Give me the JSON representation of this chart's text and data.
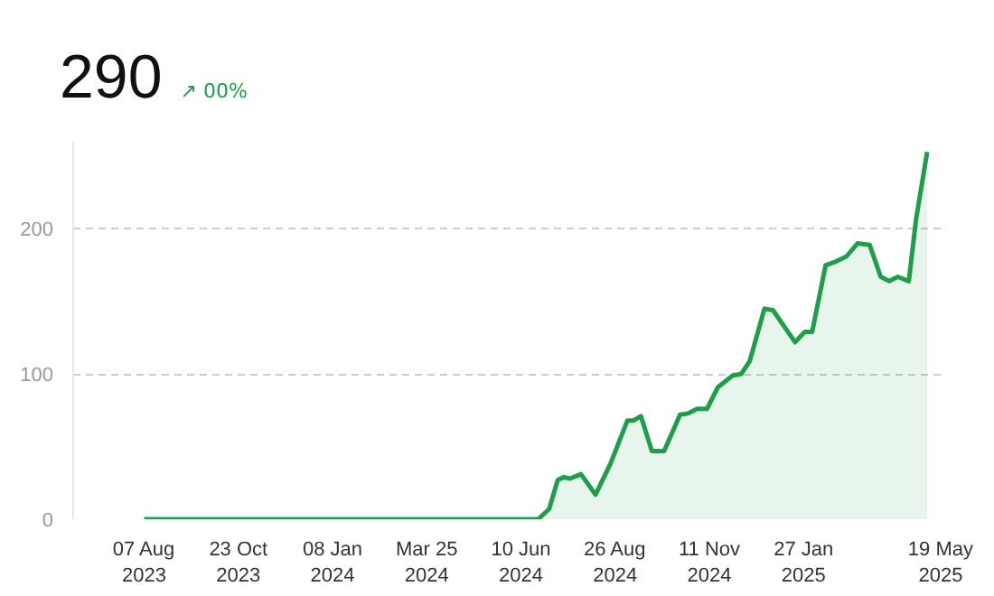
{
  "chart_data": {
    "type": "area",
    "annotations": [
      "290",
      "↗ 00%"
    ],
    "x": [
      "2023-08-07",
      "2024-05-31",
      "2024-06-24",
      "2024-07-03",
      "2024-07-10",
      "2024-07-15",
      "2024-07-20",
      "2024-07-29",
      "2024-08-10",
      "2024-08-22",
      "2024-09-05",
      "2024-09-10",
      "2024-09-16",
      "2024-09-25",
      "2024-10-05",
      "2024-10-18",
      "2024-10-25",
      "2024-11-01",
      "2024-11-09",
      "2024-11-18",
      "2024-11-30",
      "2024-12-07",
      "2024-12-14",
      "2024-12-26",
      "2025-01-02",
      "2025-01-20",
      "2025-01-28",
      "2025-02-03",
      "2025-02-14",
      "2025-02-21",
      "2025-03-03",
      "2025-03-12",
      "2025-03-22",
      "2025-03-31",
      "2025-04-07",
      "2025-04-14",
      "2025-04-23",
      "2025-04-29",
      "2025-05-08"
    ],
    "series": [
      {
        "color": "#1e9e4a",
        "values": [
          0,
          0,
          0,
          7,
          27,
          29,
          28,
          31,
          17,
          38,
          68,
          68,
          71,
          47,
          47,
          72,
          73,
          76,
          76,
          91,
          99,
          100,
          109,
          145,
          144,
          122,
          129,
          129,
          175,
          177,
          181,
          190,
          189,
          167,
          164,
          167,
          164,
          207,
          253
        ]
      }
    ],
    "xlim": [
      "2023-06-10",
      "2025-05-22"
    ],
    "xticks": [
      {
        "value": "2023-08-07",
        "label": "07 Aug\n2023"
      },
      {
        "value": "2023-10-23",
        "label": "23 Oct\n2023"
      },
      {
        "value": "2024-01-08",
        "label": "08 Jan\n2024"
      },
      {
        "value": "2024-03-25",
        "label": "Mar 25\n2024"
      },
      {
        "value": "2024-06-10",
        "label": "10 Jun\n2024"
      },
      {
        "value": "2024-08-26",
        "label": "26 Aug\n2024"
      },
      {
        "value": "2024-11-11",
        "label": "11 Nov\n2024"
      },
      {
        "value": "2025-01-27",
        "label": "27 Jan\n2025"
      },
      {
        "value": "2025-05-19",
        "label": "19 May\n2025"
      }
    ],
    "ylim": [
      0,
      260
    ],
    "yticks": [
      0,
      100,
      200
    ],
    "grid": "y"
  }
}
